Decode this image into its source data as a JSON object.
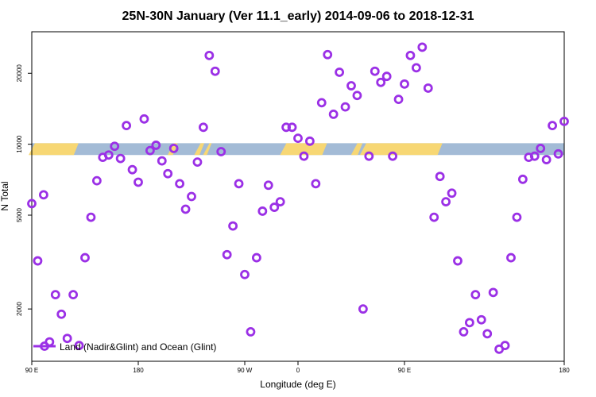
{
  "chart_data": {
    "type": "scatter",
    "title": "25N-30N January (Ver 11.1_early)   2014-09-06 to 2018-12-31",
    "xlabel": "Longitude (deg E)",
    "ylabel": "N Total",
    "xlim": [
      -180,
      180
    ],
    "ylim_log": [
      1200,
      30000
    ],
    "y_scale": "log",
    "x_ticks": [
      {
        "value": -180,
        "label": "90 E"
      },
      {
        "value": -108,
        "label": "180"
      },
      {
        "value": -36,
        "label": "90 W"
      },
      {
        "value": 0,
        "label": "0"
      },
      {
        "value": 72,
        "label": "90 E"
      },
      {
        "value": 180,
        "label": "180"
      }
    ],
    "y_ticks": [
      {
        "value": 2000,
        "label": "2000"
      },
      {
        "value": 5000,
        "label": "5000"
      },
      {
        "value": 10000,
        "label": "10000"
      },
      {
        "value": 20000,
        "label": "20000"
      }
    ],
    "land_ocean_strip": {
      "y_low": 9000,
      "y_high": 10100,
      "ocean_color": "#a3bbd6",
      "land_color": "#f7d774",
      "land_segments": [
        [
          -180,
          -150
        ],
        [
          -86,
          -83
        ],
        [
          -68,
          -65
        ],
        [
          -62,
          -60
        ],
        [
          -10,
          18
        ],
        [
          38,
          42
        ],
        [
          44,
          96
        ]
      ]
    },
    "series": [
      {
        "name": "Land (Nadir&Glint) and Ocean (Glint)",
        "color": "#9b30e6",
        "x": [
          -180,
          -176,
          -172,
          -168,
          -164,
          -160,
          -156,
          -152,
          -148,
          -144,
          -140,
          -136,
          -132,
          -128,
          -124,
          -120,
          -116,
          -112,
          -108,
          -104,
          -100,
          -96,
          -92,
          -88,
          -84,
          -80,
          -76,
          -72,
          -68,
          -64,
          -60,
          -56,
          -52,
          -48,
          -44,
          -40,
          -36,
          -32,
          -28,
          -24,
          -20,
          -16,
          -12,
          -8,
          -4,
          0,
          4,
          8,
          12,
          16,
          20,
          24,
          28,
          32,
          36,
          40,
          44,
          48,
          52,
          56,
          60,
          64,
          68,
          72,
          76,
          80,
          84,
          88,
          92,
          96,
          100,
          104,
          108,
          112,
          116,
          120,
          124,
          128,
          132,
          136,
          140,
          144,
          148,
          152,
          156,
          160,
          164,
          168,
          172,
          176,
          180
        ],
        "y": [
          5600,
          3200,
          6100,
          1450,
          2300,
          1900,
          1500,
          2300,
          1400,
          3300,
          4900,
          7000,
          8800,
          9000,
          9800,
          8700,
          12000,
          7800,
          6900,
          12800,
          9400,
          9900,
          8500,
          7500,
          9600,
          6800,
          5300,
          6000,
          8400,
          11800,
          23800,
          20400,
          9300,
          3400,
          4500,
          6800,
          2800,
          1600,
          3300,
          5200,
          6700,
          5400,
          5700,
          11800,
          11800,
          10600,
          8900,
          10300,
          6800,
          15000,
          24000,
          13400,
          20200,
          14400,
          17700,
          16100,
          2000,
          8900,
          20400,
          18300,
          19400,
          8900,
          15500,
          18000,
          23800,
          21100,
          25800,
          17300,
          4900,
          7300,
          5700,
          6200,
          3200,
          1600,
          1750,
          2300,
          1800,
          1570,
          2350,
          1350,
          1400,
          3300,
          4900,
          7100,
          8800,
          8900,
          9600,
          8600,
          12000,
          9100,
          12500
        ]
      }
    ],
    "legend_position": "bottom-left"
  }
}
